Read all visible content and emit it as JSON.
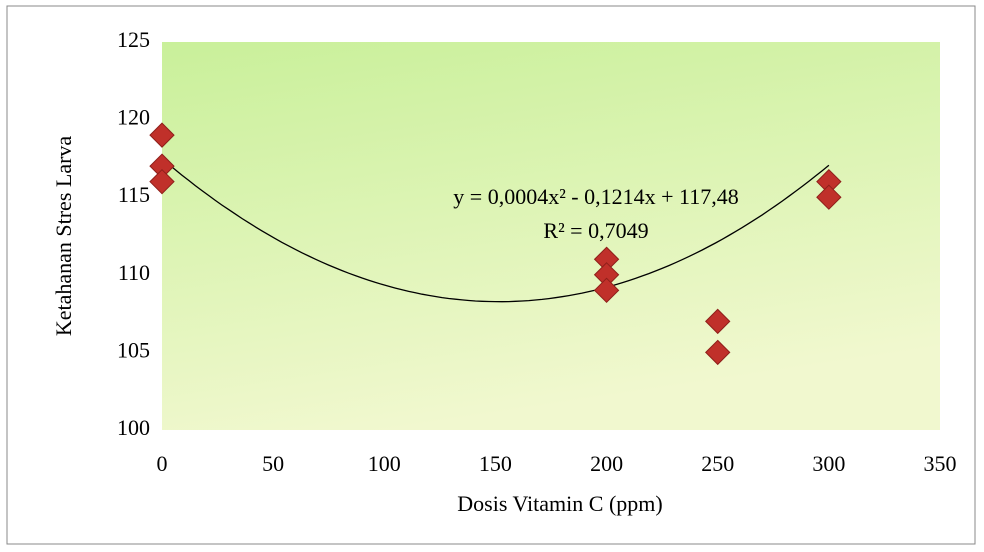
{
  "chart_data": {
    "type": "scatter",
    "x_label": "Dosis Vitamin C (ppm)",
    "y_label": "Ketahanan Stres Larva",
    "series": [
      {
        "color": "#c0302a",
        "x": [
          0,
          0,
          0,
          200,
          200,
          200,
          250,
          250,
          300,
          300
        ],
        "values": [
          119,
          117,
          116,
          111,
          110,
          109,
          107,
          105,
          116,
          115
        ]
      }
    ],
    "trendline": {
      "coefficients": [
        0.0004,
        -0.1214,
        117.48
      ],
      "label": "y = 0,0004x² - 0,1214x + 117,48",
      "r2_label": "R² = 0,7049"
    },
    "xlim": [
      0,
      350
    ],
    "xticks": [
      0,
      50,
      100,
      150,
      200,
      250,
      300,
      350
    ],
    "ylim": [
      100,
      125
    ],
    "yticks": [
      100,
      105,
      110,
      115,
      120,
      125
    ]
  }
}
